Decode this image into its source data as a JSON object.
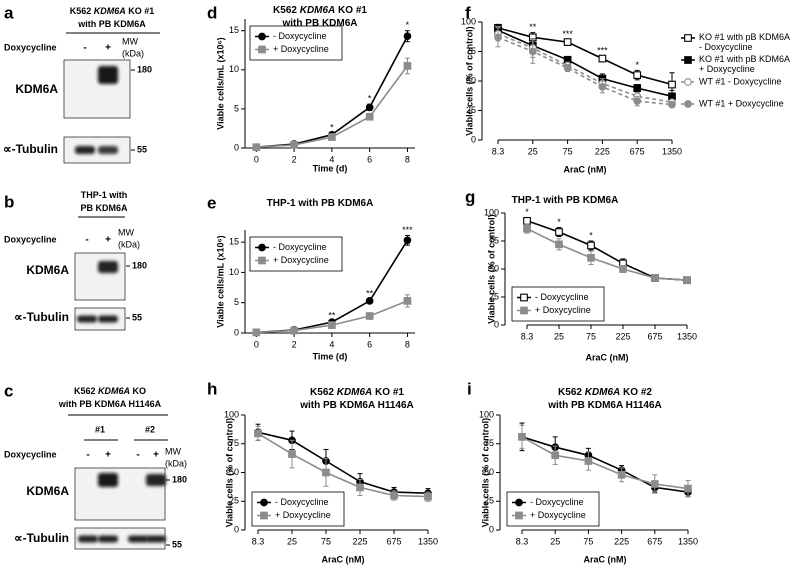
{
  "blots": [
    {
      "panel_label": "a",
      "title_lines": [
        [
          {
            "text": "K562 "
          },
          {
            "text": "KDM6A",
            "italic": true
          },
          {
            "text": " KO #1"
          }
        ],
        [
          {
            "text": "with PB KDM6A"
          }
        ]
      ],
      "treatment": "Doxycycline",
      "lanes": [
        "-",
        "+"
      ],
      "mw_label": [
        "MW",
        "(kDa)"
      ],
      "rows": [
        {
          "label": "KDM6A",
          "mw": "180"
        },
        {
          "label": "∝-Tubulin",
          "mw": "55"
        }
      ]
    },
    {
      "panel_label": "b",
      "title_lines": [
        [
          {
            "text": "THP-1 with"
          }
        ],
        [
          {
            "text": "PB KDM6A"
          }
        ]
      ],
      "treatment": "Doxycycline",
      "lanes": [
        "-",
        "+"
      ],
      "mw_label": [
        "MW",
        "(kDa)"
      ],
      "rows": [
        {
          "label": "KDM6A",
          "mw": "180"
        },
        {
          "label": "∝-Tubulin",
          "mw": "55"
        }
      ]
    },
    {
      "panel_label": "c",
      "title_lines": [
        [
          {
            "text": "K562 "
          },
          {
            "text": "KDM6A",
            "italic": true
          },
          {
            "text": " KO"
          }
        ],
        [
          {
            "text": "with PB KDM6A H1146A"
          }
        ]
      ],
      "groups": [
        "#1",
        "#2"
      ],
      "treatment": "Doxycycline",
      "lanes": [
        "-",
        "+",
        "-",
        "+"
      ],
      "mw_label": [
        "MW",
        "(kDa)"
      ],
      "rows": [
        {
          "label": "KDM6A",
          "mw": "180"
        },
        {
          "label": "∝-Tubulin",
          "mw": "55"
        }
      ]
    }
  ],
  "chart_data": [
    {
      "type": "line",
      "panel_label": "d",
      "title_lines": [
        [
          {
            "text": "K562 "
          },
          {
            "text": "KDM6A",
            "italic": true
          },
          {
            "text": " KO #1"
          }
        ],
        [
          {
            "text": "with PB KDM6A"
          }
        ]
      ],
      "x_label": "Time (d)",
      "y_label": "Viable cells/mL (x10⁶)",
      "x": [
        0,
        2,
        4,
        6,
        8
      ],
      "xlim": [
        -0.6,
        8.4
      ],
      "xticks": [
        0,
        2,
        4,
        6,
        8
      ],
      "ylim": [
        0,
        16.5
      ],
      "yticks": [
        0,
        5,
        10,
        15
      ],
      "legend": "upper left",
      "series": [
        {
          "name": "- Doxycycline",
          "color": "#000000",
          "marker": "circle",
          "values": [
            0.1,
            0.5,
            1.7,
            5.2,
            14.3
          ],
          "errors": [
            0.05,
            0.1,
            0.2,
            0.4,
            0.7
          ]
        },
        {
          "name": "+ Doxycycline",
          "color": "#8c8c8c",
          "marker": "square",
          "values": [
            0.1,
            0.4,
            1.4,
            4.0,
            10.5
          ],
          "errors": [
            0.05,
            0.1,
            0.2,
            0.4,
            1.0
          ]
        }
      ],
      "annotations": [
        {
          "x": 4,
          "text": "*"
        },
        {
          "x": 6,
          "text": "*"
        },
        {
          "x": 8,
          "text": "*"
        }
      ]
    },
    {
      "type": "line",
      "panel_label": "e",
      "title_lines": [
        [
          {
            "text": "THP-1 with PB KDM6A"
          }
        ]
      ],
      "x_label": "Time (d)",
      "y_label": "Viable cells/mL (x10⁶)",
      "x": [
        0,
        2,
        4,
        6,
        8
      ],
      "xlim": [
        -0.6,
        8.4
      ],
      "xticks": [
        0,
        2,
        4,
        6,
        8
      ],
      "ylim": [
        0,
        17
      ],
      "yticks": [
        0,
        5,
        10,
        15
      ],
      "legend": "upper left",
      "series": [
        {
          "name": "- Doxycycline",
          "color": "#000000",
          "marker": "circle",
          "values": [
            0.1,
            0.5,
            1.8,
            5.3,
            15.3
          ],
          "errors": [
            0.05,
            0.1,
            0.2,
            0.3,
            0.8
          ]
        },
        {
          "name": "+ Doxycycline",
          "color": "#8c8c8c",
          "marker": "square",
          "values": [
            0.1,
            0.4,
            1.3,
            2.8,
            5.3
          ],
          "errors": [
            0.05,
            0.1,
            0.2,
            0.4,
            1.0
          ]
        }
      ],
      "annotations": [
        {
          "x": 4,
          "text": "**"
        },
        {
          "x": 6,
          "text": "**"
        },
        {
          "x": 8,
          "text": "***"
        }
      ]
    },
    {
      "type": "line",
      "panel_label": "f",
      "title_lines": [],
      "x_label": "AraC (nM)",
      "y_label": "Viable cells (% of control)",
      "categories": [
        "8.3",
        "25",
        "75",
        "225",
        "675",
        "1350"
      ],
      "ylim": [
        0,
        100
      ],
      "yticks": [
        0,
        25,
        50,
        75,
        100
      ],
      "legend": "right",
      "series": [
        {
          "name": "KO #1 with pB KDM6A - Doxycycline",
          "color": "#000000",
          "marker": "open-square",
          "values": [
            95,
            87,
            83,
            69,
            55,
            47
          ],
          "errors": [
            3,
            4,
            2,
            2,
            4,
            10
          ]
        },
        {
          "name": "KO #1 with pB KDM6A + Doxycycline",
          "color": "#000000",
          "marker": "square",
          "values": [
            93,
            80,
            68,
            52,
            44,
            37
          ],
          "errors": [
            4,
            6,
            2,
            4,
            3,
            5
          ]
        },
        {
          "name": "WT #1 - Doxycycline",
          "color": "#8c8c8c",
          "marker": "open-circle",
          "dash": true,
          "values": [
            90,
            78,
            63,
            48,
            37,
            32
          ],
          "errors": [
            6,
            8,
            3,
            4,
            3,
            2
          ]
        },
        {
          "name": "WT #1 + Doxycycline",
          "color": "#8c8c8c",
          "marker": "circle",
          "dash": true,
          "values": [
            87,
            75,
            61,
            45,
            33,
            30
          ],
          "errors": [
            8,
            10,
            3,
            5,
            4,
            2
          ]
        }
      ],
      "annotations": [
        {
          "category": "25",
          "text": "**"
        },
        {
          "category": "75",
          "text": "***"
        },
        {
          "category": "225",
          "text": "***"
        },
        {
          "category": "675",
          "text": "*"
        }
      ]
    },
    {
      "type": "line",
      "panel_label": "g",
      "title_lines": [
        [
          {
            "text": "THP-1 with PB KDM6A"
          }
        ]
      ],
      "x_label": "AraC (nM)",
      "y_label": "Viable cells (% of control)",
      "categories": [
        "8.3",
        "25",
        "75",
        "225",
        "675",
        "1350"
      ],
      "ylim": [
        0,
        100
      ],
      "yticks": [
        0,
        25,
        50,
        75,
        100
      ],
      "legend": "lower left",
      "series": [
        {
          "name": "- Doxycycline",
          "color": "#000000",
          "marker": "open-square",
          "values": [
            93,
            83,
            71,
            55,
            42,
            40
          ],
          "errors": [
            3,
            4,
            4,
            4,
            3,
            1
          ]
        },
        {
          "name": "+ Doxycycline",
          "color": "#8c8c8c",
          "marker": "square",
          "values": [
            86,
            72,
            60,
            50,
            42,
            40
          ],
          "errors": [
            4,
            5,
            6,
            3,
            3,
            1
          ]
        }
      ],
      "annotations": [
        {
          "category": "8.3",
          "text": "*"
        },
        {
          "category": "25",
          "text": "*"
        },
        {
          "category": "75",
          "text": "*"
        }
      ]
    },
    {
      "type": "line",
      "panel_label": "h",
      "title_lines": [
        [
          {
            "text": "K562 "
          },
          {
            "text": "KDM6A",
            "italic": true
          },
          {
            "text": " KO #1"
          }
        ],
        [
          {
            "text": "with PB KDM6A H1146A"
          }
        ]
      ],
      "x_label": "AraC (nM)",
      "y_label": "Viable cells (% of control)",
      "categories": [
        "8.3",
        "25",
        "75",
        "225",
        "675",
        "1350"
      ],
      "ylim": [
        0,
        100
      ],
      "yticks": [
        0,
        25,
        50,
        75,
        100
      ],
      "legend": "lower left",
      "series": [
        {
          "name": "- Doxycycline",
          "color": "#000000",
          "marker": "circle",
          "values": [
            85,
            78,
            60,
            42,
            33,
            32
          ],
          "errors": [
            7,
            8,
            10,
            7,
            4,
            4
          ]
        },
        {
          "name": "+ Doxycycline",
          "color": "#8c8c8c",
          "marker": "square",
          "values": [
            84,
            66,
            50,
            37,
            30,
            29
          ],
          "errors": [
            6,
            12,
            12,
            7,
            4,
            4
          ]
        }
      ]
    },
    {
      "type": "line",
      "panel_label": "i",
      "title_lines": [
        [
          {
            "text": "K562 "
          },
          {
            "text": "KDM6A",
            "italic": true
          },
          {
            "text": " KO #2"
          }
        ],
        [
          {
            "text": "with PB KDM6A H1146A"
          }
        ]
      ],
      "x_label": "AraC (nM)",
      "y_label": "Viable cells (% of control)",
      "categories": [
        "8.3",
        "25",
        "75",
        "225",
        "675",
        "1350"
      ],
      "ylim": [
        0,
        100
      ],
      "yticks": [
        0,
        25,
        50,
        75,
        100
      ],
      "legend": "lower left",
      "series": [
        {
          "name": "- Doxycycline",
          "color": "#000000",
          "marker": "circle",
          "values": [
            81,
            72,
            65,
            52,
            37,
            33
          ],
          "errors": [
            12,
            9,
            6,
            4,
            4,
            4
          ]
        },
        {
          "name": "+ Doxycycline",
          "color": "#8c8c8c",
          "marker": "square",
          "values": [
            81,
            65,
            60,
            48,
            40,
            36
          ],
          "errors": [
            10,
            8,
            8,
            6,
            8,
            7
          ]
        }
      ]
    }
  ]
}
